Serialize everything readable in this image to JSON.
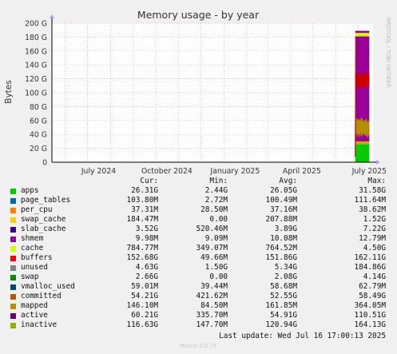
{
  "side_label": "RRDTOOL / TOBI OETIKER",
  "chart_data": {
    "type": "area",
    "title": "Memory usage - by year",
    "ylabel": "Bytes",
    "ylim": [
      0,
      200
    ],
    "y_unit": "G",
    "y_ticks": [
      "0",
      "20 G",
      "40 G",
      "60 G",
      "80 G",
      "100 G",
      "120 G",
      "140 G",
      "160 G",
      "180 G",
      "200 G"
    ],
    "x_ticks": [
      "July 2024",
      "October 2024",
      "January 2025",
      "April 2025",
      "July 2025"
    ],
    "x_range": [
      "2024-05-14",
      "2025-07-21"
    ],
    "data_start": "2025-06-27",
    "data_end": "2025-07-16",
    "grid": true,
    "layers_approx_top": {
      "apps": 26,
      "apps_plus_small": 30,
      "cache_top": 181,
      "buffers_top": 186,
      "unused_top": 189,
      "swap_band": [
        105,
        130
      ],
      "active_band": [
        35,
        65
      ]
    }
  },
  "legend": {
    "headers": {
      "cur": "Cur:",
      "min": "Min:",
      "avg": "Avg:",
      "max": "Max:"
    },
    "rows": [
      {
        "name": "apps",
        "color": "#00cc00",
        "cur": "26.31G",
        "min": "2.44G",
        "avg": "26.05G",
        "max": "31.58G"
      },
      {
        "name": "page_tables",
        "color": "#0066b3",
        "cur": "103.80M",
        "min": "2.72M",
        "avg": "100.49M",
        "max": "111.64M"
      },
      {
        "name": "per_cpu",
        "color": "#ff8000",
        "cur": "37.31M",
        "min": "28.50M",
        "avg": "37.16M",
        "max": "38.62M"
      },
      {
        "name": "swap_cache",
        "color": "#ffcc00",
        "cur": "184.47M",
        "min": "0.00",
        "avg": "207.88M",
        "max": "1.52G"
      },
      {
        "name": "slab_cache",
        "color": "#330099",
        "cur": "3.52G",
        "min": "520.46M",
        "avg": "3.89G",
        "max": "7.22G"
      },
      {
        "name": "shmem",
        "color": "#990099",
        "cur": "9.98M",
        "min": "9.09M",
        "avg": "10.08M",
        "max": "12.79M"
      },
      {
        "name": "cache",
        "color": "#ccff00",
        "cur": "784.77M",
        "min": "349.07M",
        "avg": "764.52M",
        "max": "4.50G"
      },
      {
        "name": "buffers",
        "color": "#ff0000",
        "cur": "152.68G",
        "min": "49.66M",
        "avg": "151.86G",
        "max": "162.11G"
      },
      {
        "name": "unused",
        "color": "#808080",
        "cur": "4.63G",
        "min": "1.50G",
        "avg": "5.34G",
        "max": "184.86G"
      },
      {
        "name": "swap",
        "color": "#008f00",
        "cur": "2.66G",
        "min": "0.00",
        "avg": "2.08G",
        "max": "4.14G"
      },
      {
        "name": "vmalloc_used",
        "color": "#00487d",
        "cur": "59.01M",
        "min": "39.44M",
        "avg": "58.68M",
        "max": "62.79M"
      },
      {
        "name": "committed",
        "color": "#b35a00",
        "cur": "54.21G",
        "min": "421.62M",
        "avg": "52.55G",
        "max": "58.49G"
      },
      {
        "name": "mapped",
        "color": "#b38f00",
        "cur": "146.10M",
        "min": "84.50M",
        "avg": "161.85M",
        "max": "364.05M"
      },
      {
        "name": "active",
        "color": "#6b006b",
        "cur": "60.21G",
        "min": "335.70M",
        "avg": "54.91G",
        "max": "110.51G"
      },
      {
        "name": "inactive",
        "color": "#8fb300",
        "cur": "116.63G",
        "min": "147.70M",
        "avg": "120.94G",
        "max": "164.13G"
      }
    ]
  },
  "last_update": "Last update: Wed Jul 16 17:00:13 2025",
  "watermark": "Munin 2.0.75"
}
